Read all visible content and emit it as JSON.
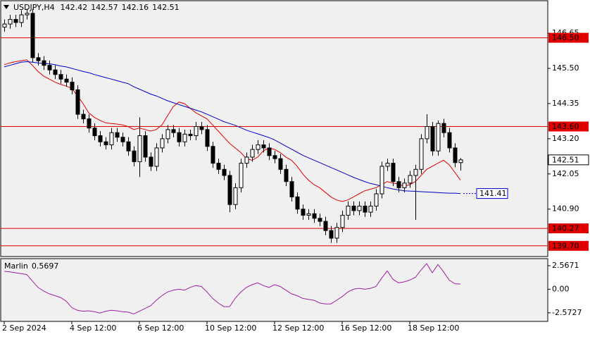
{
  "chart_data": [
    {
      "type": "candlestick",
      "title": "USDJPY,H4",
      "categories": [
        "2 Sep 2024",
        null,
        null,
        null,
        null,
        null,
        null,
        null,
        null,
        null,
        null,
        null,
        "4 Sep 12:00",
        null,
        null,
        null,
        null,
        null,
        null,
        null,
        null,
        null,
        null,
        null,
        "6 Sep 12:00",
        null,
        null,
        null,
        null,
        null,
        null,
        null,
        null,
        null,
        null,
        null,
        "10 Sep 12:00",
        null,
        null,
        null,
        null,
        null,
        null,
        null,
        null,
        null,
        null,
        null,
        "12 Sep 12:00",
        null,
        null,
        null,
        null,
        null,
        null,
        null,
        null,
        null,
        null,
        null,
        "16 Sep 12:00",
        null,
        null,
        null,
        null,
        null,
        null,
        null,
        null,
        null,
        null,
        null,
        "18 Sep 12:00",
        null,
        null,
        null,
        null,
        null,
        null,
        null,
        null,
        null
      ],
      "open": [
        146.85,
        146.95,
        147.1,
        147.0,
        147.25,
        147.3,
        145.85,
        145.75,
        145.6,
        145.45,
        145.3,
        145.15,
        145.05,
        144.8,
        144.0,
        143.85,
        143.55,
        143.3,
        143.1,
        143.0,
        143.4,
        143.25,
        143.1,
        142.8,
        142.45,
        143.3,
        142.6,
        142.3,
        142.9,
        143.2,
        143.5,
        143.4,
        143.1,
        143.35,
        143.3,
        143.6,
        143.5,
        142.95,
        142.4,
        142.2,
        142.0,
        141.05,
        141.6,
        142.4,
        142.6,
        142.85,
        143.0,
        142.9,
        142.65,
        142.55,
        142.2,
        141.8,
        141.3,
        140.9,
        140.7,
        140.75,
        140.6,
        140.5,
        140.2,
        139.95,
        140.3,
        140.7,
        141.0,
        140.85,
        141.0,
        140.8,
        141.0,
        141.4,
        142.3,
        142.4,
        141.8,
        141.6,
        141.75,
        142.0,
        142.2,
        143.2,
        143.6,
        142.8,
        143.7,
        143.4,
        142.9,
        142.42
      ],
      "high": [
        147.1,
        147.25,
        147.25,
        147.4,
        147.45,
        147.45,
        146.0,
        145.9,
        145.75,
        145.6,
        145.45,
        145.3,
        145.2,
        144.95,
        144.15,
        144.0,
        143.7,
        143.45,
        143.25,
        143.55,
        143.55,
        143.4,
        143.25,
        142.95,
        143.9,
        143.45,
        142.75,
        143.05,
        143.35,
        143.65,
        143.65,
        143.55,
        143.5,
        143.5,
        143.75,
        143.75,
        143.65,
        143.1,
        142.55,
        142.35,
        142.15,
        141.75,
        142.55,
        142.75,
        143.0,
        143.15,
        143.15,
        143.05,
        142.8,
        142.7,
        142.35,
        141.95,
        141.45,
        141.05,
        140.9,
        140.9,
        140.75,
        140.65,
        140.35,
        140.45,
        140.85,
        141.15,
        141.15,
        141.15,
        141.15,
        141.15,
        141.55,
        142.45,
        142.55,
        142.55,
        141.95,
        141.9,
        142.15,
        142.35,
        143.35,
        144.0,
        143.75,
        143.8,
        143.85,
        143.55,
        143.05,
        142.57
      ],
      "low": [
        146.7,
        146.8,
        146.85,
        146.85,
        147.1,
        145.7,
        145.6,
        145.45,
        145.3,
        145.15,
        145.0,
        144.9,
        144.65,
        143.85,
        143.7,
        143.4,
        143.15,
        142.95,
        142.85,
        142.85,
        143.1,
        142.95,
        142.65,
        142.3,
        141.95,
        142.45,
        142.15,
        142.15,
        142.75,
        143.05,
        143.25,
        142.95,
        142.95,
        143.15,
        143.15,
        143.35,
        142.8,
        142.25,
        142.05,
        141.85,
        140.8,
        140.9,
        141.45,
        142.25,
        142.45,
        142.7,
        142.75,
        142.5,
        142.4,
        142.05,
        141.65,
        141.15,
        140.75,
        140.55,
        140.55,
        140.45,
        140.35,
        140.05,
        139.8,
        139.8,
        140.15,
        140.55,
        140.7,
        140.7,
        140.65,
        140.65,
        140.85,
        141.25,
        142.15,
        141.65,
        141.45,
        141.45,
        141.6,
        140.55,
        142.05,
        143.05,
        142.65,
        142.65,
        143.25,
        142.75,
        142.27,
        142.16
      ],
      "close": [
        146.95,
        147.1,
        147.0,
        147.25,
        147.3,
        145.85,
        145.75,
        145.6,
        145.45,
        145.3,
        145.15,
        145.05,
        144.8,
        144.0,
        143.85,
        143.55,
        143.3,
        143.1,
        143.0,
        143.4,
        143.25,
        143.1,
        142.8,
        142.45,
        143.3,
        142.6,
        142.3,
        142.9,
        143.2,
        143.5,
        143.4,
        143.1,
        143.35,
        143.3,
        143.6,
        143.5,
        142.95,
        142.4,
        142.2,
        142.0,
        141.05,
        141.6,
        142.4,
        142.6,
        142.85,
        143.0,
        142.9,
        142.65,
        142.55,
        142.2,
        141.8,
        141.3,
        140.9,
        140.7,
        140.75,
        140.6,
        140.5,
        140.2,
        139.95,
        140.3,
        140.7,
        141.0,
        140.85,
        141.0,
        140.8,
        141.0,
        141.4,
        142.3,
        142.4,
        141.8,
        141.6,
        141.75,
        142.0,
        142.2,
        143.2,
        143.6,
        142.8,
        143.7,
        143.4,
        142.9,
        142.42,
        142.51
      ],
      "up_color": "#ffffff",
      "down_color": "#000000",
      "series": [
        {
          "color": "#e00000",
          "values": [
            145.62,
            145.68,
            145.72,
            145.75,
            145.78,
            145.6,
            145.4,
            145.25,
            145.15,
            145.05,
            144.98,
            144.92,
            144.85,
            144.6,
            144.35,
            144.05,
            143.9,
            143.8,
            143.72,
            143.7,
            143.68,
            143.65,
            143.6,
            143.5,
            143.55,
            143.5,
            143.45,
            143.5,
            143.65,
            143.95,
            144.25,
            144.4,
            144.35,
            144.2,
            144.05,
            143.95,
            143.85,
            143.65,
            143.45,
            143.25,
            143.05,
            142.9,
            142.75,
            142.55,
            142.5,
            142.6,
            142.8,
            142.9,
            142.85,
            142.75,
            142.6,
            142.5,
            142.3,
            142.05,
            141.85,
            141.7,
            141.6,
            141.45,
            141.3,
            141.2,
            141.15,
            141.2,
            141.3,
            141.4,
            141.5,
            141.55,
            141.6,
            141.7,
            141.8,
            141.75,
            141.72,
            141.65,
            141.7,
            141.8,
            142.0,
            142.2,
            142.3,
            142.4,
            142.5,
            142.35,
            142.1,
            141.85
          ]
        },
        {
          "color": "#0000cc",
          "values": [
            145.55,
            145.6,
            145.65,
            145.7,
            145.72,
            145.7,
            145.68,
            145.66,
            145.65,
            145.62,
            145.58,
            145.55,
            145.5,
            145.45,
            145.4,
            145.36,
            145.3,
            145.25,
            145.2,
            145.15,
            145.1,
            145.05,
            145.0,
            144.9,
            144.82,
            144.74,
            144.66,
            144.6,
            144.52,
            144.44,
            144.38,
            144.32,
            144.26,
            144.2,
            144.14,
            144.08,
            144.0,
            143.92,
            143.84,
            143.76,
            143.7,
            143.64,
            143.56,
            143.48,
            143.42,
            143.36,
            143.3,
            143.24,
            143.16,
            143.06,
            142.96,
            142.86,
            142.76,
            142.66,
            142.58,
            142.5,
            142.42,
            142.34,
            142.26,
            142.18,
            142.1,
            142.02,
            141.94,
            141.87,
            141.8,
            141.74,
            141.7,
            141.65,
            141.6,
            141.56,
            141.53,
            141.5,
            141.49,
            141.48,
            141.47,
            141.46,
            141.45,
            141.44,
            141.43,
            141.42,
            141.42,
            141.41
          ]
        }
      ],
      "levels": [
        {
          "value": 146.5,
          "label": "146.50"
        },
        {
          "value": 143.6,
          "label": "143.60"
        },
        140.27,
        {
          "value": 139.7,
          "label": "139.70"
        }
      ],
      "level_color": "#e00000",
      "ylim": [
        139.35,
        147.62
      ],
      "yticks": [
        146.65,
        {
          "value": 145.5,
          "label": "145.50"
        },
        144.35,
        {
          "value": 143.2,
          "label": "143.20"
        },
        142.05,
        {
          "value": 140.9,
          "label": "140.90"
        }
      ]
    },
    {
      "type": "line",
      "title": "Marlin",
      "series": [
        {
          "color": "#a020a0",
          "values": [
            1.95,
            1.9,
            1.8,
            1.7,
            1.6,
            0.9,
            0.2,
            -0.2,
            -0.5,
            -0.7,
            -0.9,
            -1.3,
            -2.0,
            -2.3,
            -2.4,
            -2.35,
            -2.45,
            -2.6,
            -2.4,
            -2.3,
            -2.35,
            -2.45,
            -2.5,
            -2.7,
            -2.4,
            -2.1,
            -1.8,
            -1.2,
            -0.7,
            -0.3,
            -0.1,
            0.0,
            -0.1,
            0.2,
            0.4,
            0.3,
            -0.3,
            -1.0,
            -1.5,
            -1.9,
            -1.9,
            -1.0,
            -0.3,
            0.2,
            0.5,
            0.7,
            0.4,
            0.2,
            0.5,
            0.3,
            -0.1,
            -0.5,
            -0.7,
            -1.0,
            -1.1,
            -1.2,
            -1.5,
            -1.6,
            -1.6,
            -1.2,
            -0.8,
            -0.3,
            0.0,
            0.1,
            0.0,
            0.1,
            0.3,
            1.2,
            2.0,
            1.1,
            0.7,
            0.8,
            1.0,
            1.3,
            2.1,
            2.8,
            1.8,
            2.7,
            1.9,
            1.0,
            0.6,
            0.5697
          ]
        }
      ],
      "ylim": [
        -3.43,
        3.26
      ],
      "yticks": [
        2.5671,
        {
          "value": 0,
          "label": "0.00"
        },
        -2.5727
      ]
    }
  ]
}
